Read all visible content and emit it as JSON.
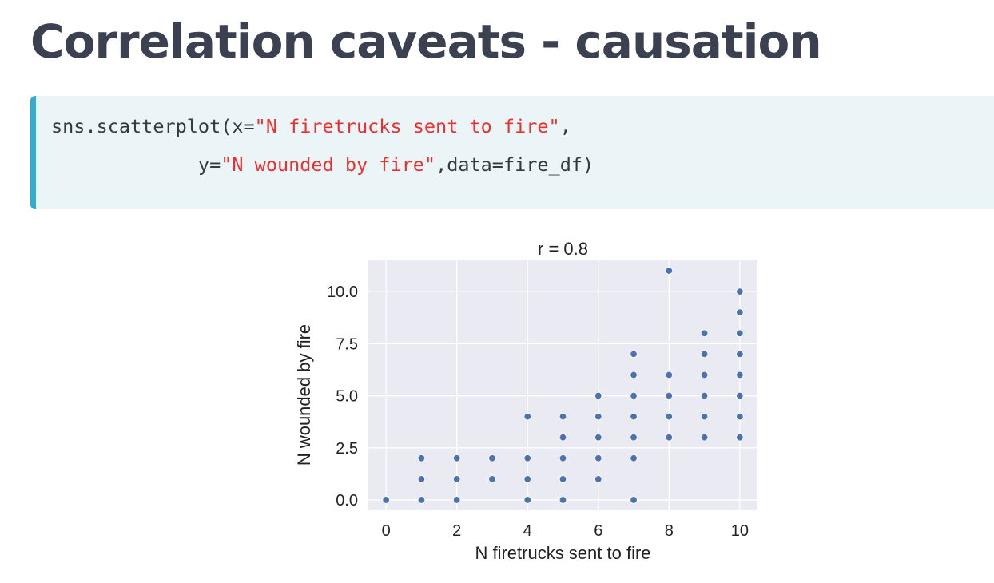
{
  "slide": {
    "title": "Correlation caveats - causation"
  },
  "code": {
    "line1_prefix": "sns.scatterplot(x=",
    "line1_string": "\"N firetrucks sent to fire\"",
    "line1_suffix": ",",
    "line2_indent": "             y=",
    "line2_string": "\"N wounded by fire\"",
    "line2_suffix": ",data=fire_df)"
  },
  "colors": {
    "title": "#3b4150",
    "code_background": "#ebf4f7",
    "code_accent": "#33acd0",
    "code_string": "#e8322f",
    "plot_background": "#eaeaf2",
    "point": "#4c72b0"
  },
  "chart_data": {
    "type": "scatter",
    "title": "r = 0.8",
    "xlabel": "N firetrucks sent to fire",
    "ylabel": "N wounded by fire",
    "xlim": [
      -0.5,
      10.5
    ],
    "ylim": [
      -0.5,
      11.5
    ],
    "xticks": [
      0,
      2,
      4,
      6,
      8,
      10
    ],
    "xtick_labels": [
      "0",
      "2",
      "4",
      "6",
      "8",
      "10"
    ],
    "yticks": [
      0,
      2.5,
      5,
      7.5,
      10
    ],
    "ytick_labels": [
      "0.0",
      "2.5",
      "5.0",
      "7.5",
      "10.0"
    ],
    "grid": true,
    "points": [
      {
        "x": 0,
        "y": 0
      },
      {
        "x": 1,
        "y": 0
      },
      {
        "x": 1,
        "y": 1
      },
      {
        "x": 1,
        "y": 2
      },
      {
        "x": 2,
        "y": 0
      },
      {
        "x": 2,
        "y": 1
      },
      {
        "x": 2,
        "y": 2
      },
      {
        "x": 3,
        "y": 1
      },
      {
        "x": 3,
        "y": 2
      },
      {
        "x": 4,
        "y": 0
      },
      {
        "x": 4,
        "y": 1
      },
      {
        "x": 4,
        "y": 2
      },
      {
        "x": 4,
        "y": 4
      },
      {
        "x": 5,
        "y": 0
      },
      {
        "x": 5,
        "y": 1
      },
      {
        "x": 5,
        "y": 2
      },
      {
        "x": 5,
        "y": 3
      },
      {
        "x": 5,
        "y": 4
      },
      {
        "x": 6,
        "y": 1
      },
      {
        "x": 6,
        "y": 2
      },
      {
        "x": 6,
        "y": 3
      },
      {
        "x": 6,
        "y": 4
      },
      {
        "x": 6,
        "y": 5
      },
      {
        "x": 7,
        "y": 0
      },
      {
        "x": 7,
        "y": 2
      },
      {
        "x": 7,
        "y": 3
      },
      {
        "x": 7,
        "y": 4
      },
      {
        "x": 7,
        "y": 5
      },
      {
        "x": 7,
        "y": 6
      },
      {
        "x": 7,
        "y": 7
      },
      {
        "x": 8,
        "y": 3
      },
      {
        "x": 8,
        "y": 4
      },
      {
        "x": 8,
        "y": 5
      },
      {
        "x": 8,
        "y": 6
      },
      {
        "x": 8,
        "y": 11
      },
      {
        "x": 9,
        "y": 3
      },
      {
        "x": 9,
        "y": 4
      },
      {
        "x": 9,
        "y": 5
      },
      {
        "x": 9,
        "y": 6
      },
      {
        "x": 9,
        "y": 7
      },
      {
        "x": 9,
        "y": 8
      },
      {
        "x": 10,
        "y": 3
      },
      {
        "x": 10,
        "y": 4
      },
      {
        "x": 10,
        "y": 5
      },
      {
        "x": 10,
        "y": 6
      },
      {
        "x": 10,
        "y": 7
      },
      {
        "x": 10,
        "y": 8
      },
      {
        "x": 10,
        "y": 9
      },
      {
        "x": 10,
        "y": 10
      }
    ]
  }
}
